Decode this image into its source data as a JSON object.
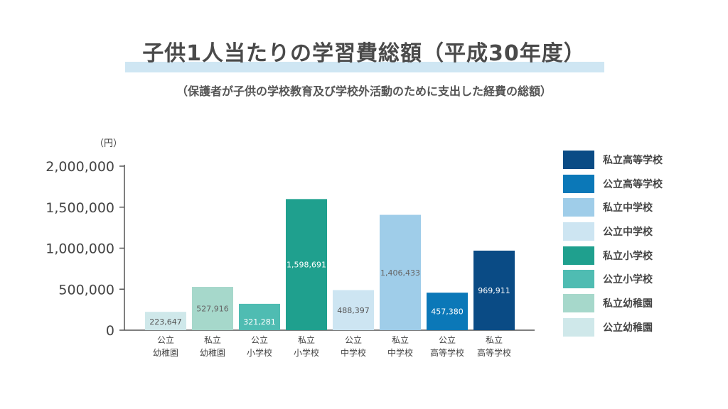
{
  "header": {
    "title": "子供1人当たりの学習費総額（平成30年度）",
    "subtitle": "（保護者が子供の学校教育及び学校外活動のために支出した経費の総額）"
  },
  "chart_data": {
    "type": "bar",
    "unit_label": "（円）",
    "categories": [
      [
        "公立",
        "幼稚園"
      ],
      [
        "私立",
        "幼稚園"
      ],
      [
        "公立",
        "小学校"
      ],
      [
        "私立",
        "小学校"
      ],
      [
        "公立",
        "中学校"
      ],
      [
        "私立",
        "中学校"
      ],
      [
        "公立",
        "高等学校"
      ],
      [
        "私立",
        "高等学校"
      ]
    ],
    "values": [
      223647,
      527916,
      321281,
      1598691,
      488397,
      1406433,
      457380,
      969911
    ],
    "value_labels": [
      "223,647",
      "527,916",
      "321,281",
      "1,598,691",
      "488,397",
      "1,406,433",
      "457,380",
      "969,911"
    ],
    "colors": [
      "#cfe8ea",
      "#a6d8cb",
      "#4fbcb2",
      "#1fa08e",
      "#cde5f2",
      "#9fcde9",
      "#0b78b8",
      "#0a4b85"
    ],
    "label_colors": [
      "#555555",
      "#666666",
      "#ffffff",
      "#ffffff",
      "#555555",
      "#666666",
      "#ffffff",
      "#ffffff"
    ],
    "ylim": [
      0,
      2000000
    ],
    "yticks": [
      0,
      500000,
      1000000,
      1500000,
      2000000
    ],
    "ytick_labels": [
      "0",
      "500,000",
      "1,000,000",
      "1,500,000",
      "2,000,000"
    ],
    "legend": [
      {
        "label": "私立高等学校",
        "color": "#0a4b85"
      },
      {
        "label": "公立高等学校",
        "color": "#0b78b8"
      },
      {
        "label": "私立中学校",
        "color": "#9fcde9"
      },
      {
        "label": "公立中学校",
        "color": "#cde5f2"
      },
      {
        "label": "私立小学校",
        "color": "#1fa08e"
      },
      {
        "label": "公立小学校",
        "color": "#4fbcb2"
      },
      {
        "label": "私立幼稚園",
        "color": "#a6d8cb"
      },
      {
        "label": "公立幼稚園",
        "color": "#cfe8ea"
      }
    ],
    "legend_position": "right"
  }
}
